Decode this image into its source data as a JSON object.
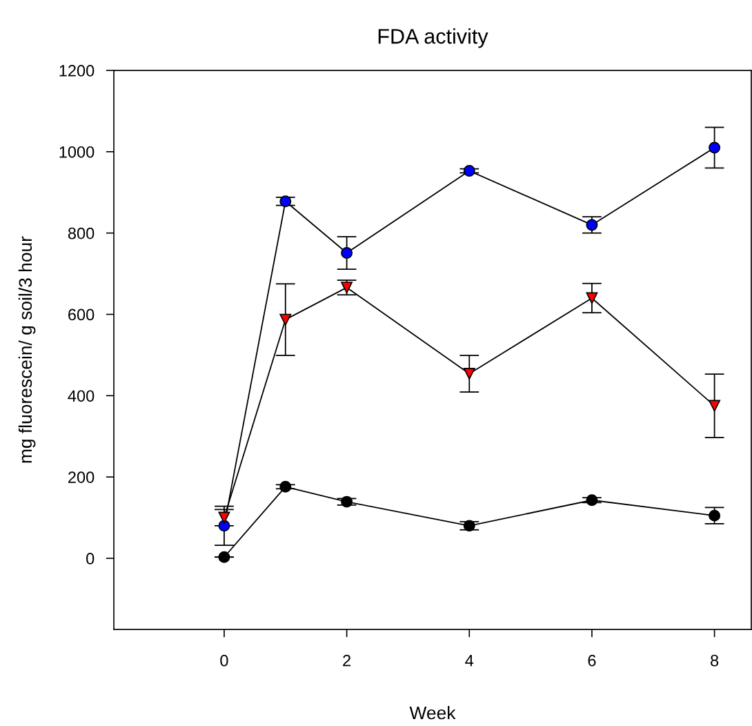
{
  "chart_data": {
    "type": "line",
    "title": "FDA activity",
    "xlabel": "Week",
    "ylabel": "mg fluorescein/ g soil/3 hour",
    "x": [
      0,
      1,
      2,
      4,
      6,
      8
    ],
    "series": [
      {
        "color": "#0000ff",
        "marker": "circle",
        "values": [
          80,
          878,
          751,
          953,
          820,
          1010
        ],
        "errors": [
          48,
          10,
          40,
          5,
          20,
          50
        ]
      },
      {
        "color": "#ff0000",
        "marker": "triangle",
        "values": [
          100,
          587,
          666,
          454,
          640,
          375
        ],
        "errors": [
          20,
          88,
          18,
          45,
          36,
          78
        ]
      },
      {
        "color": "#000000",
        "marker": "circle",
        "values": [
          3,
          176,
          139,
          80,
          143,
          105
        ],
        "errors": [
          null,
          5,
          8,
          10,
          6,
          20
        ]
      }
    ],
    "xlim": [
      -1.8,
      8.6
    ],
    "ylim": [
      -175,
      1200
    ],
    "xticks": [
      0,
      2,
      4,
      6,
      8
    ],
    "yticks": [
      0,
      200,
      400,
      600,
      800,
      1000,
      1200
    ],
    "grid": false,
    "legend": false
  }
}
